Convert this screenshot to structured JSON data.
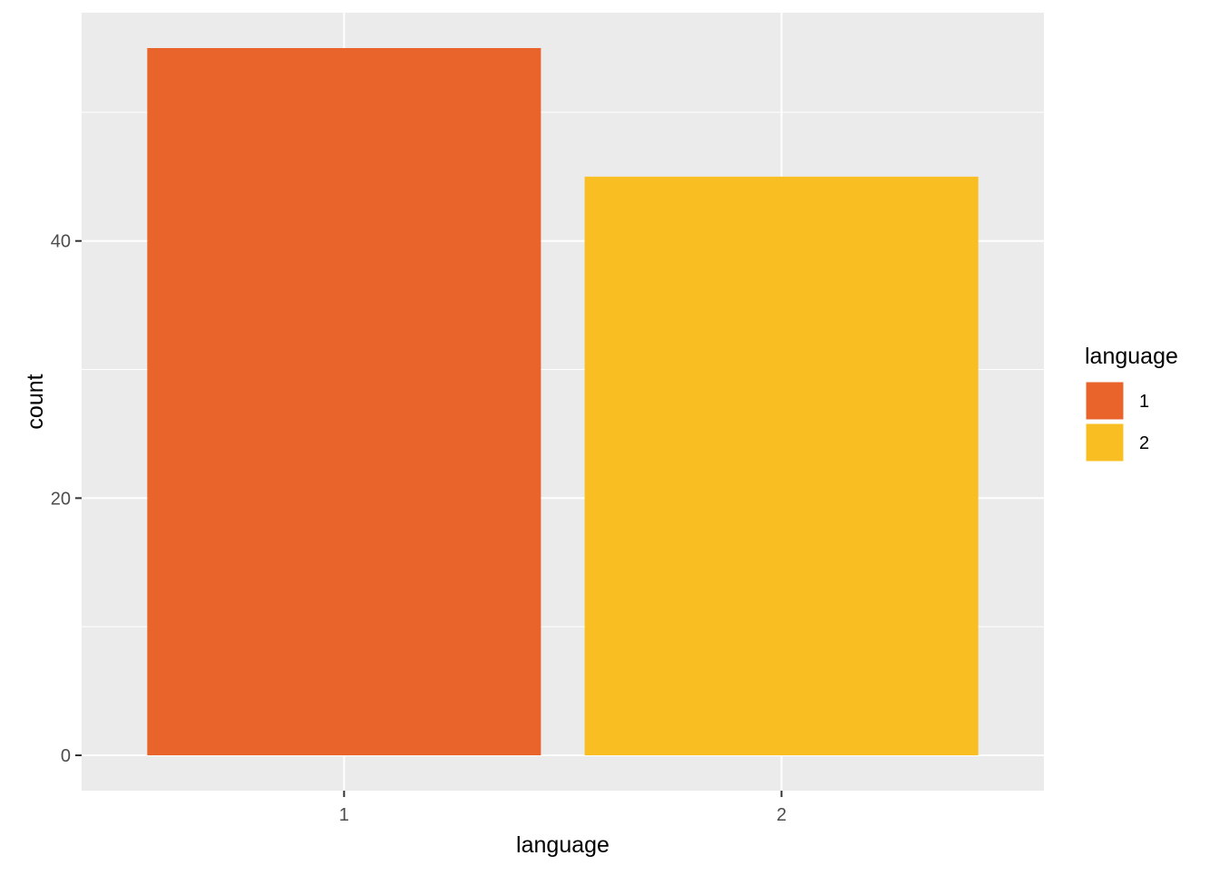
{
  "chart_data": {
    "type": "bar",
    "categories": [
      "1",
      "2"
    ],
    "values": [
      55,
      45
    ],
    "xlabel": "language",
    "ylabel": "count",
    "ylim": [
      -2.75,
      57.75
    ],
    "yticks": [
      0,
      20,
      40
    ],
    "grid": true,
    "panel_background": "#ebebeb",
    "colors": [
      "#E9642B",
      "#F9BF22"
    ],
    "legend": {
      "title": "language",
      "placement": "right",
      "entries": [
        "1",
        "2"
      ]
    }
  }
}
